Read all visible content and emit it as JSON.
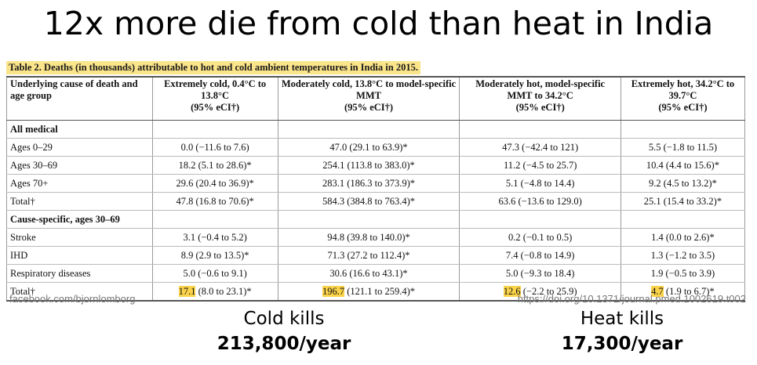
{
  "title": "12x more die from cold than heat in India",
  "table": {
    "caption": "Table 2. Deaths (in thousands) attributable to hot and cold ambient temperatures in India in 2015.",
    "corner": "Underlying cause of death and age group",
    "columns": [
      {
        "label": "Extremely cold, 0.4°C to 13.8°C",
        "ci": "(95% eCI†)"
      },
      {
        "label": "Moderately cold, 13.8°C to model-specific MMT",
        "ci": "(95% eCI†)"
      },
      {
        "label": "Moderately hot, model-specific MMT to 34.2°C",
        "ci": "(95% eCI†)"
      },
      {
        "label": "Extremely hot, 34.2°C to 39.7°C",
        "ci": "(95% eCI†)"
      }
    ],
    "groups": [
      {
        "title": "All medical",
        "rows": [
          {
            "label": "Ages 0–29",
            "cells": [
              "0.0 (−11.6 to 7.6)",
              "47.0 (29.1 to 63.9)*",
              "47.3 (−42.4 to 121)",
              "5.5 (−1.8 to 11.5)"
            ]
          },
          {
            "label": "Ages 30–69",
            "cells": [
              "18.2 (5.1 to 28.6)*",
              "254.1 (113.8 to 383.0)*",
              "11.2 (−4.5 to 25.7)",
              "10.4 (4.4 to 15.6)*"
            ]
          },
          {
            "label": "Ages 70+",
            "cells": [
              "29.6 (20.4 to 36.9)*",
              "283.1 (186.3 to 373.9)*",
              "5.1 (−4.8 to 14.4)",
              "9.2 (4.5 to 13.2)*"
            ]
          },
          {
            "label": "Total†",
            "cells": [
              "47.8 (16.8 to 70.6)*",
              "584.3 (384.8 to 763.4)*",
              "63.6 (−13.6 to 129.0)",
              "25.1 (15.4 to 33.2)*"
            ]
          }
        ]
      },
      {
        "title": "Cause-specific, ages 30–69",
        "rows": [
          {
            "label": "Stroke",
            "cells": [
              "3.1 (−0.4 to 5.2)",
              "94.8 (39.8 to 140.0)*",
              "0.2 (−0.1 to 0.5)",
              "1.4 (0.0 to 2.6)*"
            ]
          },
          {
            "label": "IHD",
            "cells": [
              "8.9 (2.9 to 13.5)*",
              "71.3 (27.2 to 112.4)*",
              "7.4 (−0.8 to 14.9)",
              "1.3 (−1.2 to 3.5)"
            ]
          },
          {
            "label": "Respiratory diseases",
            "cells": [
              "5.0 (−0.6 to 9.1)",
              "30.6 (16.6 to 43.1)*",
              "5.0 (−9.3 to 18.4)",
              "1.9 (−0.5 to 3.9)"
            ]
          },
          {
            "label": "Total†",
            "cells": [
              {
                "highlight": "17.1",
                "rest": "(8.0 to 23.1)*"
              },
              {
                "highlight": "196.7",
                "rest": "(121.1 to 259.4)*"
              },
              {
                "highlight": "12.6",
                "rest": "(−2.2 to 25.9)"
              },
              {
                "highlight": "4.7",
                "rest": "(1.9 to 6.7)*"
              }
            ]
          }
        ]
      }
    ]
  },
  "source_left": "facebook.com/bjornlomborg",
  "source_right": "https://doi.org/10.1371/journal.pmed.1002619.t002",
  "cold": {
    "label": "Cold kills",
    "value": "213,800/year"
  },
  "heat": {
    "label": "Heat kills",
    "value": "17,300/year"
  }
}
